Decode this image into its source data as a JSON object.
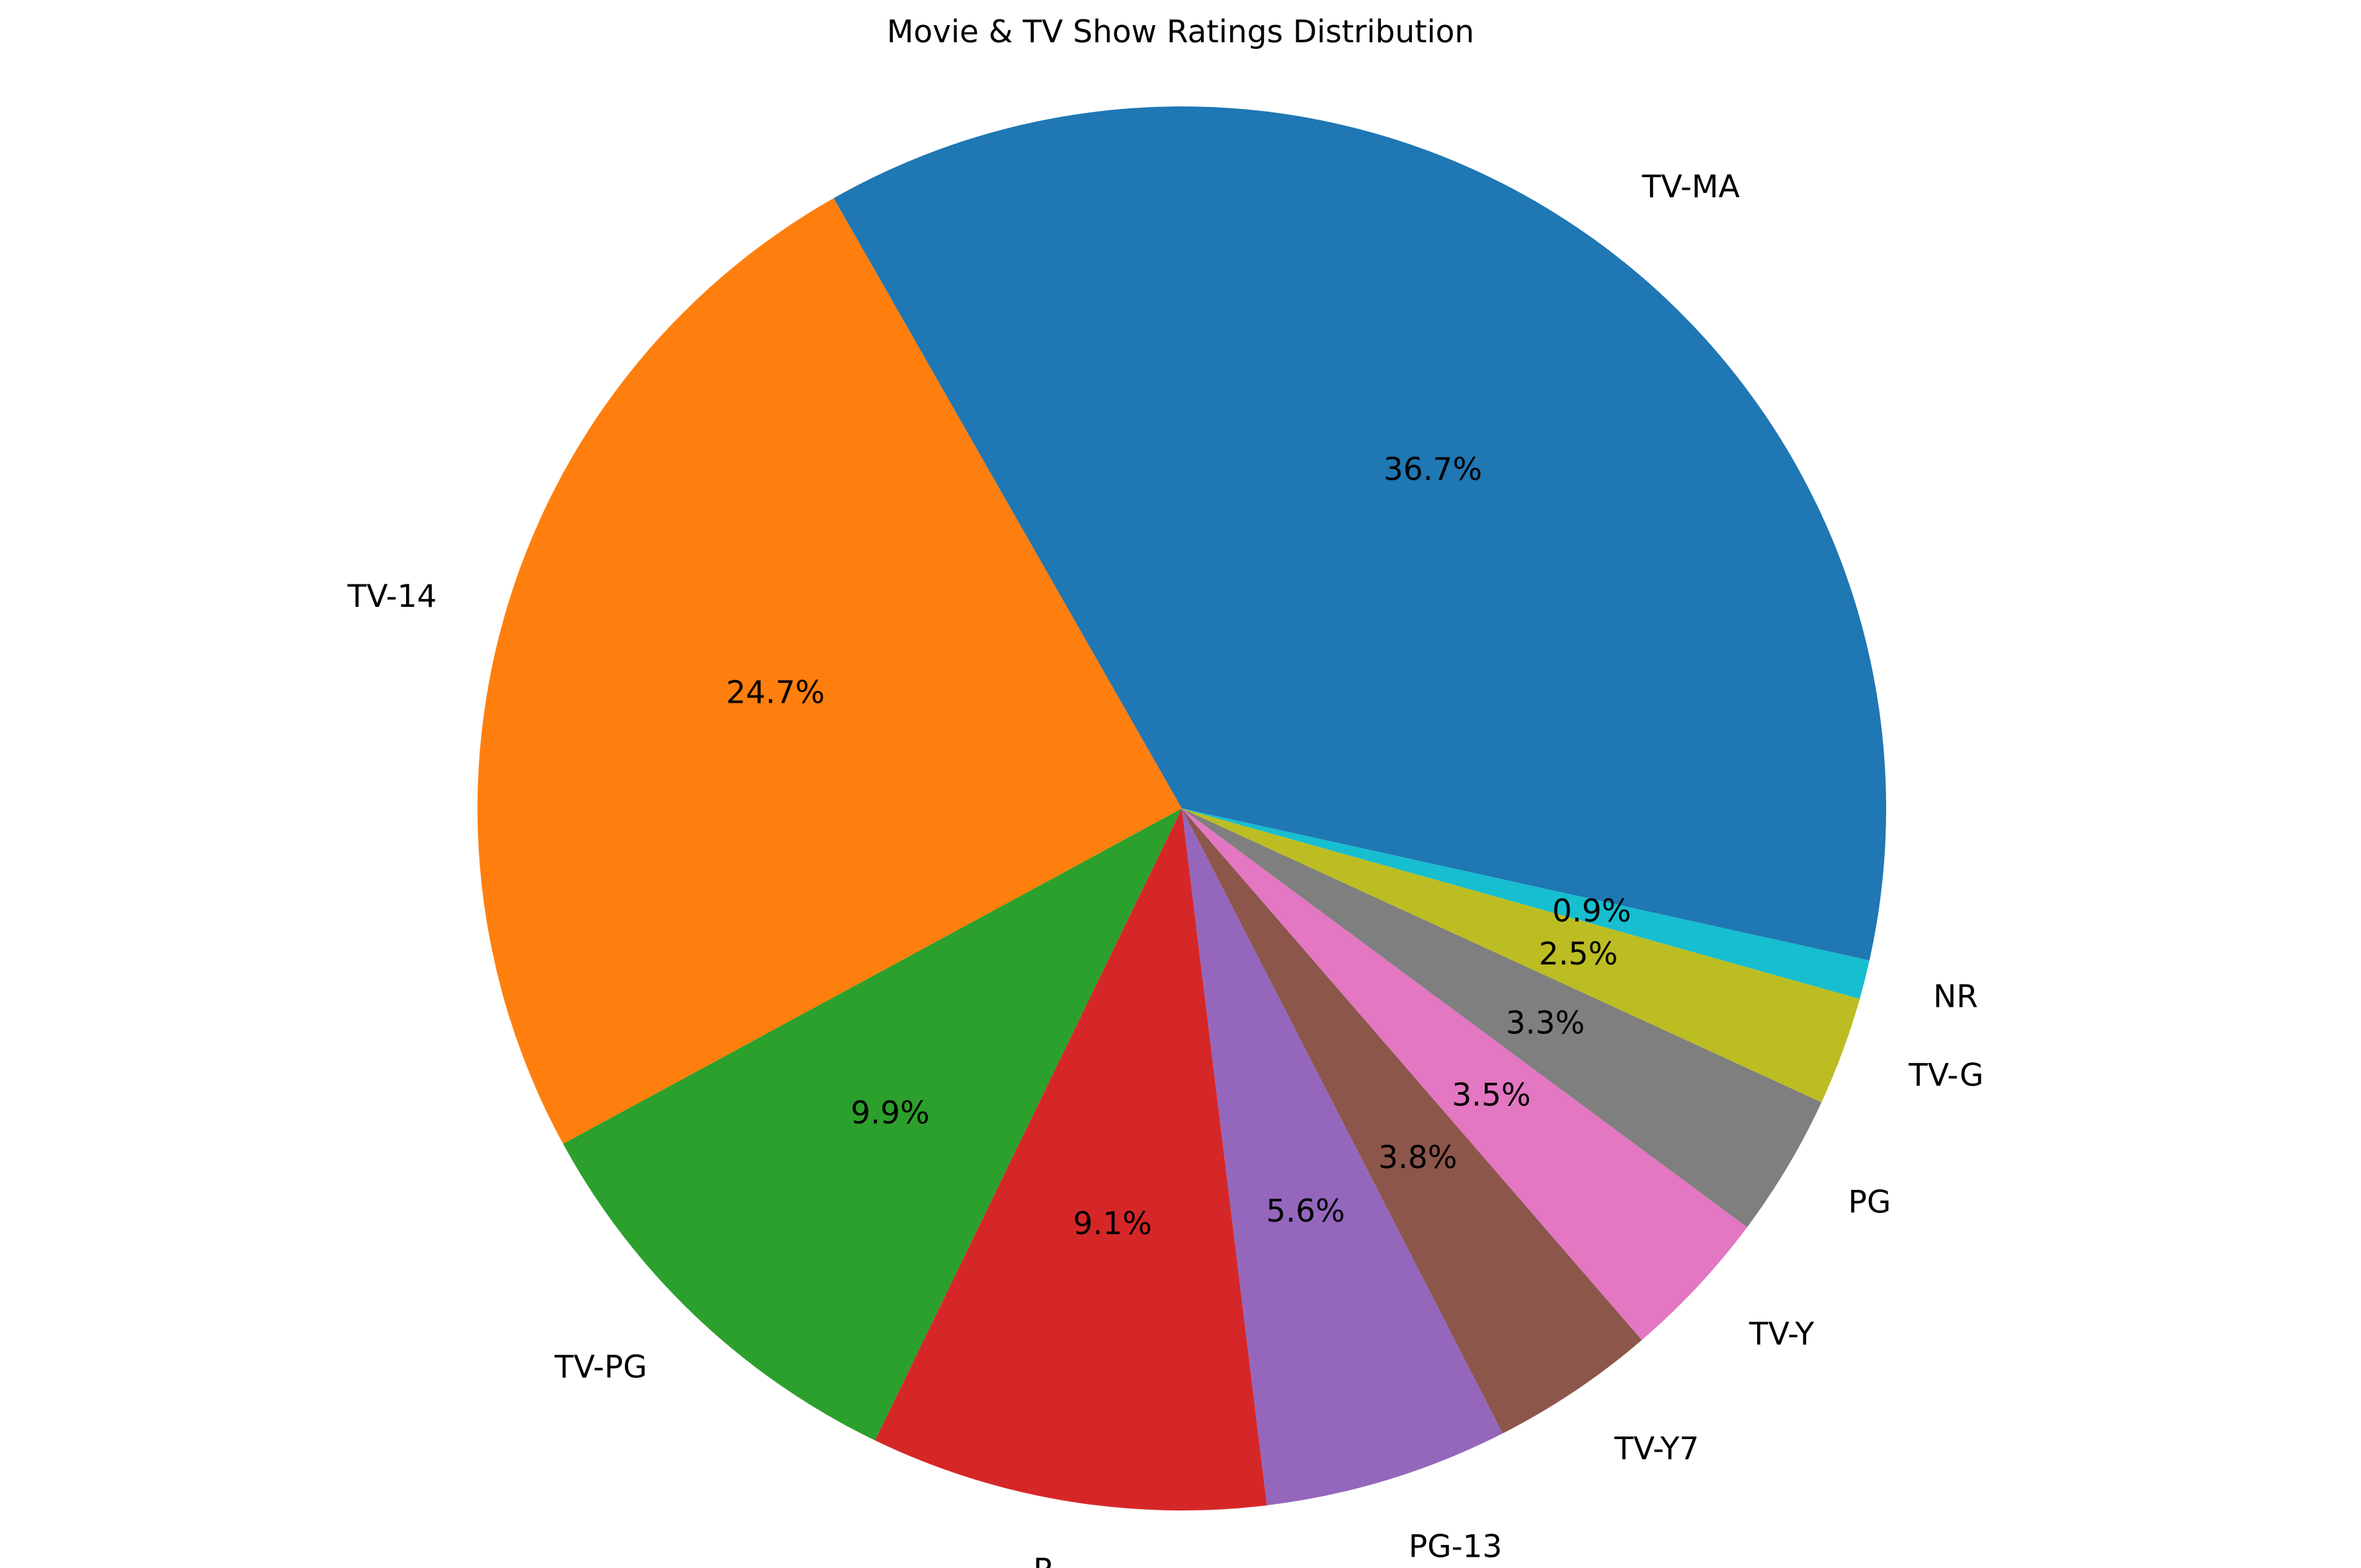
{
  "chart_data": {
    "type": "pie",
    "title": "Movie & TV Show Ratings Distribution",
    "start_angle_deg": -12.5,
    "direction": "counterclockwise",
    "slices": [
      {
        "label": "TV-MA",
        "value": 36.7,
        "pct_label": "36.7%",
        "color": "#1f77b4"
      },
      {
        "label": "TV-14",
        "value": 24.7,
        "pct_label": "24.7%",
        "color": "#ff7f0e"
      },
      {
        "label": "TV-PG",
        "value": 9.9,
        "pct_label": "9.9%",
        "color": "#2ca02c"
      },
      {
        "label": "R",
        "value": 9.1,
        "pct_label": "9.1%",
        "color": "#d62728"
      },
      {
        "label": "PG-13",
        "value": 5.6,
        "pct_label": "5.6%",
        "color": "#9467bd"
      },
      {
        "label": "TV-Y7",
        "value": 3.8,
        "pct_label": "3.8%",
        "color": "#8c564b"
      },
      {
        "label": "TV-Y",
        "value": 3.5,
        "pct_label": "3.5%",
        "color": "#e377c2"
      },
      {
        "label": "PG",
        "value": 3.3,
        "pct_label": "3.3%",
        "color": "#7f7f7f"
      },
      {
        "label": "TV-G",
        "value": 2.5,
        "pct_label": "2.5%",
        "color": "#bcbd22"
      },
      {
        "label": "NR",
        "value": 0.9,
        "pct_label": "0.9%",
        "color": "#17becf"
      }
    ]
  }
}
